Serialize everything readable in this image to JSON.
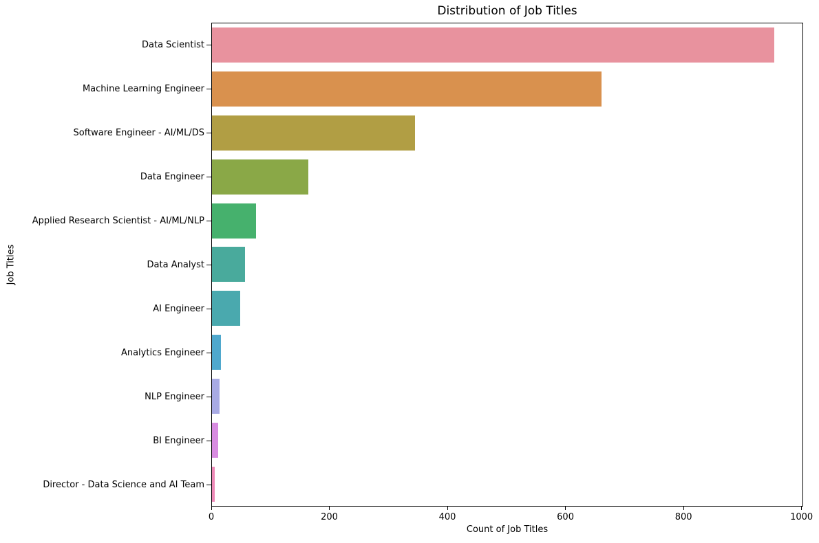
{
  "chart_data": {
    "type": "bar",
    "orientation": "horizontal",
    "title": "Distribution of Job Titles",
    "xlabel": "Count of Job Titles",
    "ylabel": "Job Titles",
    "categories": [
      "Data Scientist",
      "Machine Learning Engineer",
      "Software Engineer - AI/ML/DS",
      "Data Engineer",
      "Applied Research Scientist - AI/ML/NLP",
      "Data Analyst",
      "AI Engineer",
      "Analytics Engineer",
      "NLP Engineer",
      "BI Engineer",
      "Director - Data Science and AI Team"
    ],
    "values": [
      955,
      662,
      345,
      164,
      75,
      56,
      48,
      15,
      13,
      10,
      5
    ],
    "bar_colors": [
      "#e8929e",
      "#d9914e",
      "#b19e44",
      "#8aa847",
      "#46b16d",
      "#49aa9c",
      "#4aa9ae",
      "#4fa8cd",
      "#a8aae4",
      "#d88ce1",
      "#ee8ab8"
    ],
    "xlim": [
      0,
      1002.75
    ],
    "xticks": [
      0,
      200,
      400,
      600,
      800,
      1000
    ],
    "grid": false,
    "legend_position": "none",
    "background_color": "#ffffff",
    "spine_color": "#000000"
  }
}
